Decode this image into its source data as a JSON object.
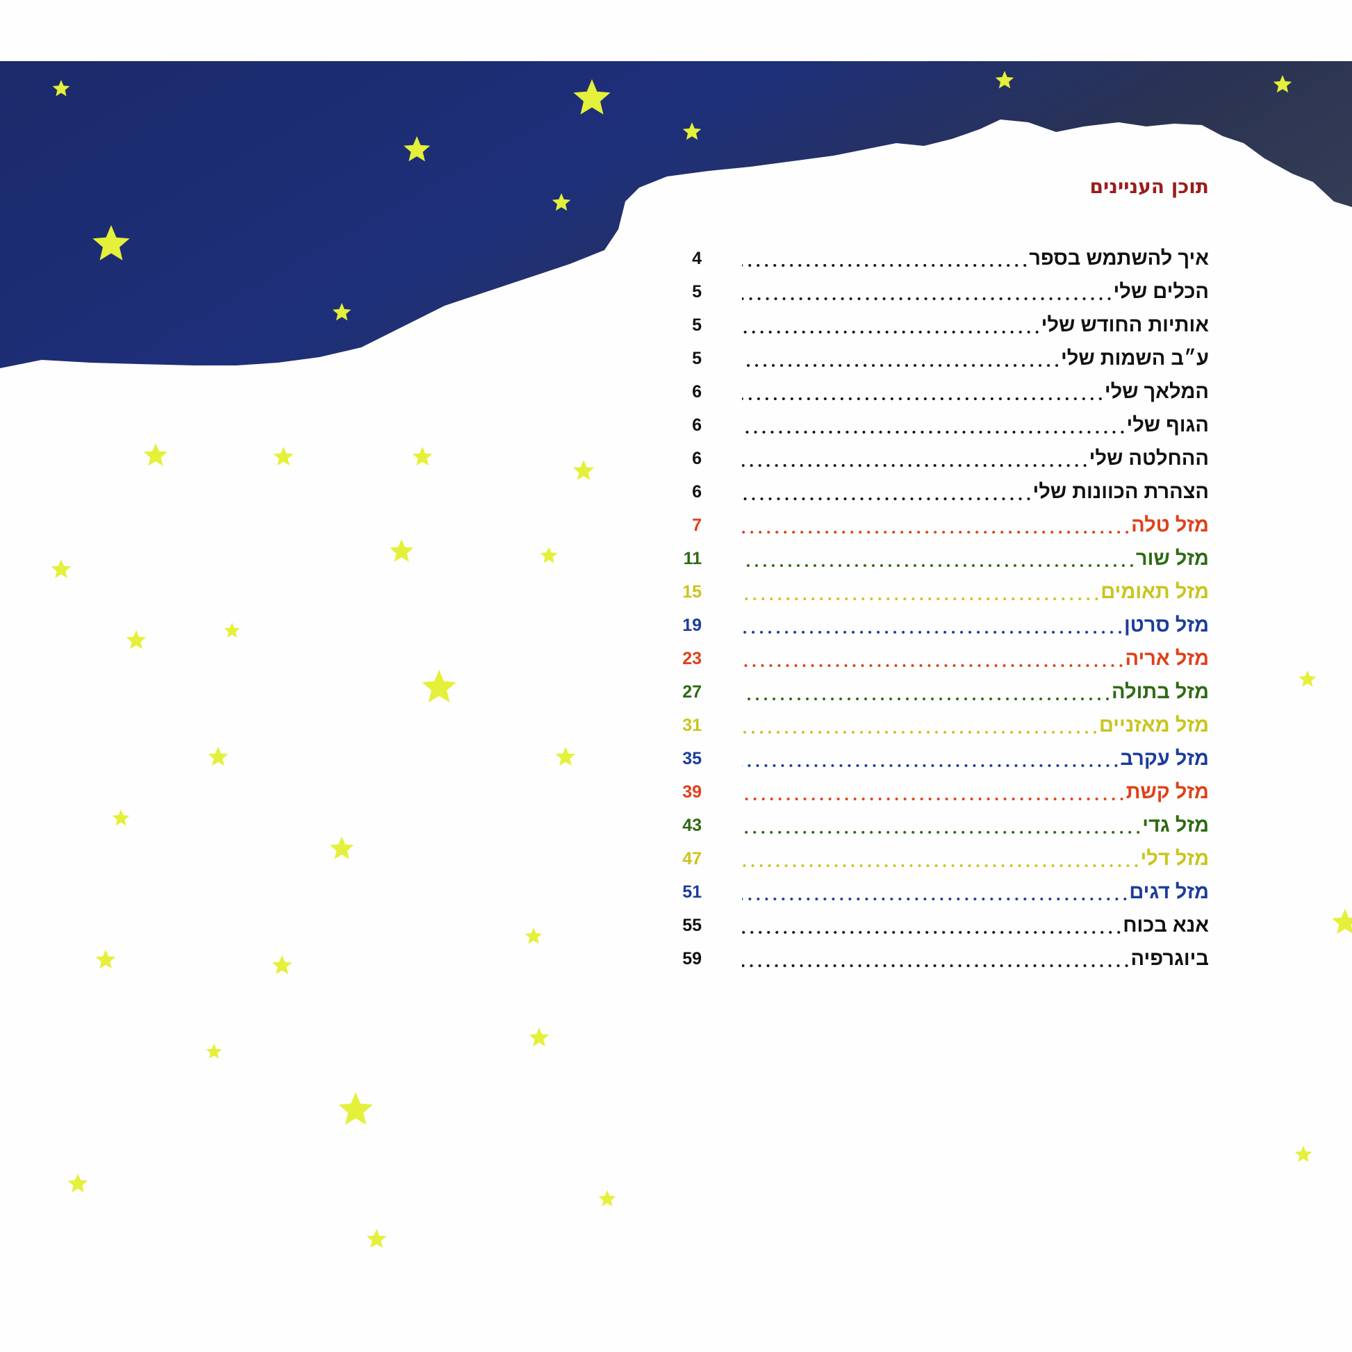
{
  "title": "תוכן העניינים",
  "colors": {
    "title": "#9b1c1c",
    "default": "#111111",
    "red": "#e0401a",
    "green": "#2f6a14",
    "yellow": "#c9c51c",
    "blue": "#1c3c9c",
    "sky": "#1c2a6e",
    "star": "#e4f03a"
  },
  "entries": [
    {
      "label": "איך להשתמש בספר",
      "page": "4",
      "color": "default"
    },
    {
      "label": "הכלים שלי",
      "page": "5",
      "color": "default"
    },
    {
      "label": "אותיות החודש שלי",
      "page": "5",
      "color": "default"
    },
    {
      "label": "ע״ב השמות שלי",
      "page": "5",
      "color": "default"
    },
    {
      "label": "המלאך שלי",
      "page": "6",
      "color": "default"
    },
    {
      "label": "הגוף שלי",
      "page": "6",
      "color": "default"
    },
    {
      "label": "ההחלטה שלי",
      "page": "6",
      "color": "default"
    },
    {
      "label": "הצהרת הכוונות שלי",
      "page": "6",
      "color": "default"
    },
    {
      "label": "מזל טלה",
      "page": "7",
      "color": "red"
    },
    {
      "label": "מזל שור",
      "page": "11",
      "color": "green"
    },
    {
      "label": "מזל תאומים",
      "page": "15",
      "color": "yellow"
    },
    {
      "label": "מזל סרטן",
      "page": "19",
      "color": "blue"
    },
    {
      "label": "מזל אריה",
      "page": "23",
      "color": "red"
    },
    {
      "label": "מזל בתולה",
      "page": "27",
      "color": "green"
    },
    {
      "label": "מזל מאזניים",
      "page": "31",
      "color": "yellow"
    },
    {
      "label": "מזל עקרב",
      "page": "35",
      "color": "blue"
    },
    {
      "label": "מזל קשת",
      "page": "39",
      "color": "red"
    },
    {
      "label": "מזל גדי",
      "page": "43",
      "color": "green"
    },
    {
      "label": "מזל דלי",
      "page": "47",
      "color": "yellow"
    },
    {
      "label": "מזל דגים",
      "page": "51",
      "color": "blue"
    },
    {
      "label": "אנא בכוח",
      "page": "55",
      "color": "default"
    },
    {
      "label": "ביוגרפיה",
      "page": "59",
      "color": "default"
    }
  ]
}
